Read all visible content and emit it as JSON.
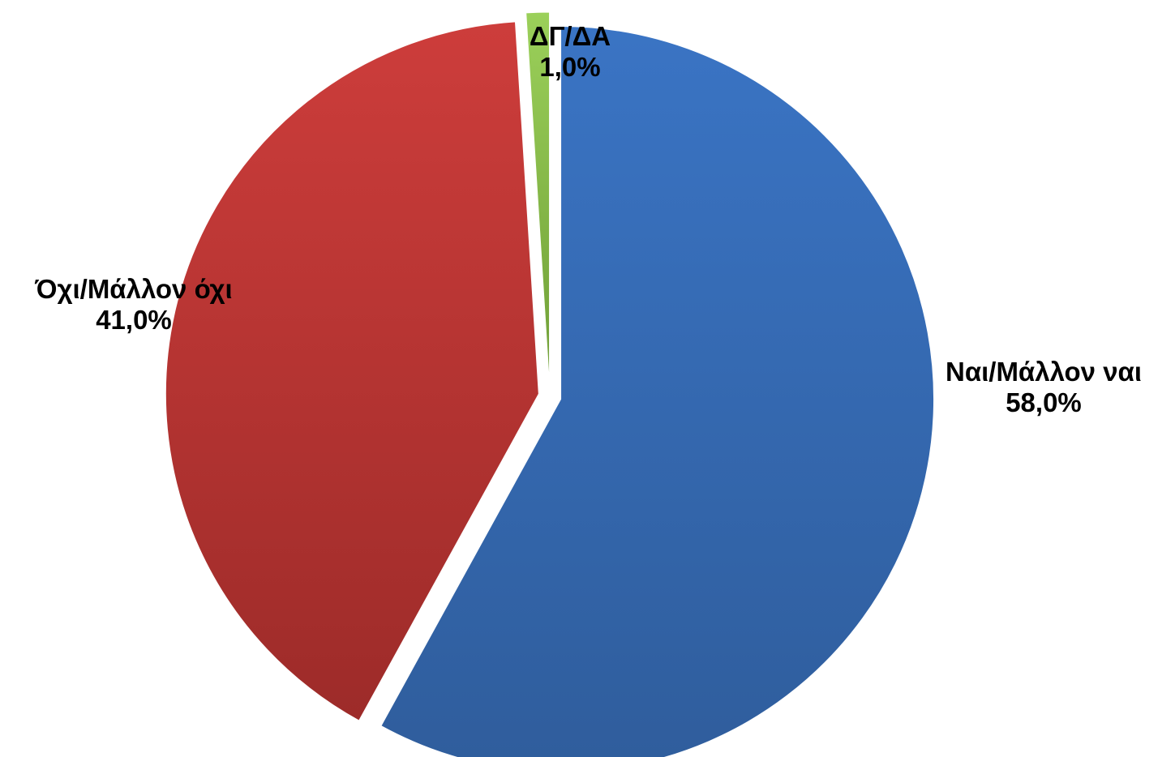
{
  "chart_data": {
    "type": "pie",
    "title": "",
    "slices": [
      {
        "label": "Ναι/Μάλλον ναι",
        "value": 58.0,
        "display": "58,0%",
        "color": "#3a74c4",
        "color_dark": "#2f5d9c"
      },
      {
        "label": "Όχι/Μάλλον όχι",
        "value": 41.0,
        "display": "41,0%",
        "color": "#cd3d3b",
        "color_dark": "#9d2b29"
      },
      {
        "label": "ΔΓ/ΔΑ",
        "value": 1.0,
        "display": "1,0%",
        "color": "#9bd05a",
        "color_dark": "#6f9e36"
      }
    ],
    "start_angle_deg": 0,
    "direction": "clockwise",
    "exploded": true,
    "legend": "none"
  }
}
